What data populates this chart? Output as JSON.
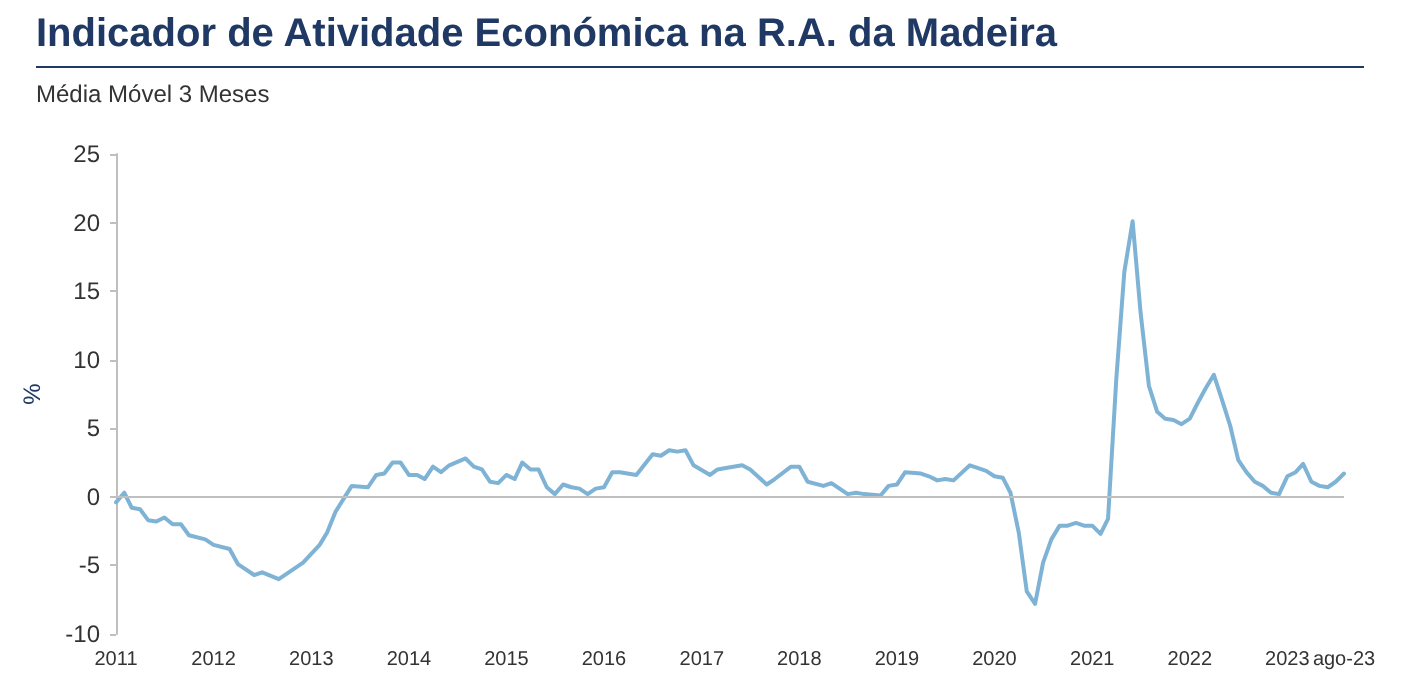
{
  "chart_data": {
    "type": "line",
    "title": "Indicador de Atividade Económica na R.A. da Madeira",
    "subtitle": "Média Móvel 3 Meses",
    "ylabel": "%",
    "x": [
      "2011-01",
      "2011-02",
      "2011-03",
      "2011-04",
      "2011-05",
      "2011-06",
      "2011-07",
      "2011-08",
      "2011-09",
      "2011-10",
      "2011-12",
      "2012-01",
      "2012-03",
      "2012-04",
      "2012-06",
      "2012-07",
      "2012-09",
      "2012-11",
      "2012-12",
      "2013-02",
      "2013-03",
      "2013-04",
      "2013-06",
      "2013-08",
      "2013-09",
      "2013-10",
      "2013-11",
      "2013-12",
      "2014-01",
      "2014-02",
      "2014-03",
      "2014-04",
      "2014-05",
      "2014-06",
      "2014-08",
      "2014-09",
      "2014-10",
      "2014-11",
      "2014-12",
      "2015-01",
      "2015-02",
      "2015-03",
      "2015-04",
      "2015-05",
      "2015-06",
      "2015-07",
      "2015-08",
      "2015-09",
      "2015-10",
      "2015-11",
      "2015-12",
      "2016-01",
      "2016-02",
      "2016-03",
      "2016-05",
      "2016-07",
      "2016-08",
      "2016-09",
      "2016-10",
      "2016-11",
      "2016-12",
      "2017-02",
      "2017-03",
      "2017-04",
      "2017-06",
      "2017-07",
      "2017-09",
      "2017-10",
      "2017-12",
      "2018-01",
      "2018-02",
      "2018-04",
      "2018-05",
      "2018-07",
      "2018-08",
      "2018-09",
      "2018-11",
      "2018-12",
      "2019-01",
      "2019-02",
      "2019-04",
      "2019-05",
      "2019-06",
      "2019-07",
      "2019-08",
      "2019-10",
      "2019-11",
      "2019-12",
      "2020-01",
      "2020-02",
      "2020-03",
      "2020-04",
      "2020-05",
      "2020-06",
      "2020-07",
      "2020-08",
      "2020-09",
      "2020-10",
      "2020-11",
      "2020-12",
      "2021-01",
      "2021-02",
      "2021-03",
      "2021-04",
      "2021-05",
      "2021-06",
      "2021-07",
      "2021-08",
      "2021-09",
      "2021-10",
      "2021-11",
      "2021-12",
      "2022-01",
      "2022-02",
      "2022-03",
      "2022-04",
      "2022-05",
      "2022-06",
      "2022-07",
      "2022-08",
      "2022-09",
      "2022-10",
      "2022-11",
      "2022-12",
      "2023-01",
      "2023-02",
      "2023-03",
      "2023-04",
      "2023-05",
      "2023-06",
      "2023-07",
      "2023-08"
    ],
    "series": [
      {
        "color": "#7fb3d5",
        "values": [
          -0.4,
          0.3,
          -0.8,
          -0.9,
          -1.7,
          -1.8,
          -1.5,
          -2.0,
          -2.0,
          -2.8,
          -3.1,
          -3.5,
          -3.8,
          -4.9,
          -5.7,
          -5.5,
          -6.0,
          -5.2,
          -4.8,
          -3.5,
          -2.6,
          -1.1,
          0.8,
          0.7,
          1.6,
          1.7,
          2.5,
          2.5,
          1.6,
          1.6,
          1.3,
          2.2,
          1.8,
          2.3,
          2.8,
          2.2,
          2.0,
          1.1,
          1.0,
          1.6,
          1.3,
          2.5,
          2.0,
          2.0,
          0.7,
          0.2,
          0.9,
          0.7,
          0.6,
          0.2,
          0.6,
          0.7,
          1.8,
          1.8,
          1.6,
          3.1,
          3.0,
          3.4,
          3.3,
          3.4,
          2.3,
          1.6,
          2.0,
          2.1,
          2.3,
          2.0,
          0.9,
          1.3,
          2.2,
          2.2,
          1.1,
          0.8,
          1.0,
          0.2,
          0.3,
          0.2,
          0.1,
          0.8,
          0.9,
          1.8,
          1.7,
          1.5,
          1.2,
          1.3,
          1.2,
          2.3,
          2.1,
          1.9,
          1.5,
          1.4,
          0.3,
          -2.6,
          -6.9,
          -7.8,
          -4.8,
          -3.1,
          -2.1,
          -2.1,
          -1.9,
          -2.1,
          -2.1,
          -2.7,
          -1.6,
          8.6,
          16.4,
          20.1,
          13.4,
          8.1,
          6.2,
          5.7,
          5.6,
          5.3,
          5.7,
          6.9,
          7.9,
          8.9,
          7.1,
          5.2,
          2.7,
          1.8,
          1.1,
          0.8,
          0.3,
          0.2,
          1.5,
          1.8,
          2.4,
          1.1,
          0.8,
          0.7,
          1.1,
          1.7
        ]
      }
    ],
    "xlim": [
      "2011-01",
      "2023-08"
    ],
    "xticks": [
      {
        "value": "2011-01",
        "label": "2011"
      },
      {
        "value": "2012-01",
        "label": "2012"
      },
      {
        "value": "2013-01",
        "label": "2013"
      },
      {
        "value": "2014-01",
        "label": "2014"
      },
      {
        "value": "2015-01",
        "label": "2015"
      },
      {
        "value": "2016-01",
        "label": "2016"
      },
      {
        "value": "2017-01",
        "label": "2017"
      },
      {
        "value": "2018-01",
        "label": "2018"
      },
      {
        "value": "2019-01",
        "label": "2019"
      },
      {
        "value": "2020-01",
        "label": "2020"
      },
      {
        "value": "2021-01",
        "label": "2021"
      },
      {
        "value": "2022-01",
        "label": "2022"
      },
      {
        "value": "2023-01",
        "label": "2023"
      },
      {
        "value": "2023-08",
        "label": "ago-23"
      }
    ],
    "ylim": [
      -10,
      25
    ],
    "yticks": [
      -10,
      -5,
      0,
      5,
      10,
      15,
      20,
      25
    ],
    "ref_lines": [
      {
        "axis": "y",
        "value": 0,
        "color": "#bfbfbf"
      }
    ],
    "marker": "none",
    "line_style": "solid"
  }
}
